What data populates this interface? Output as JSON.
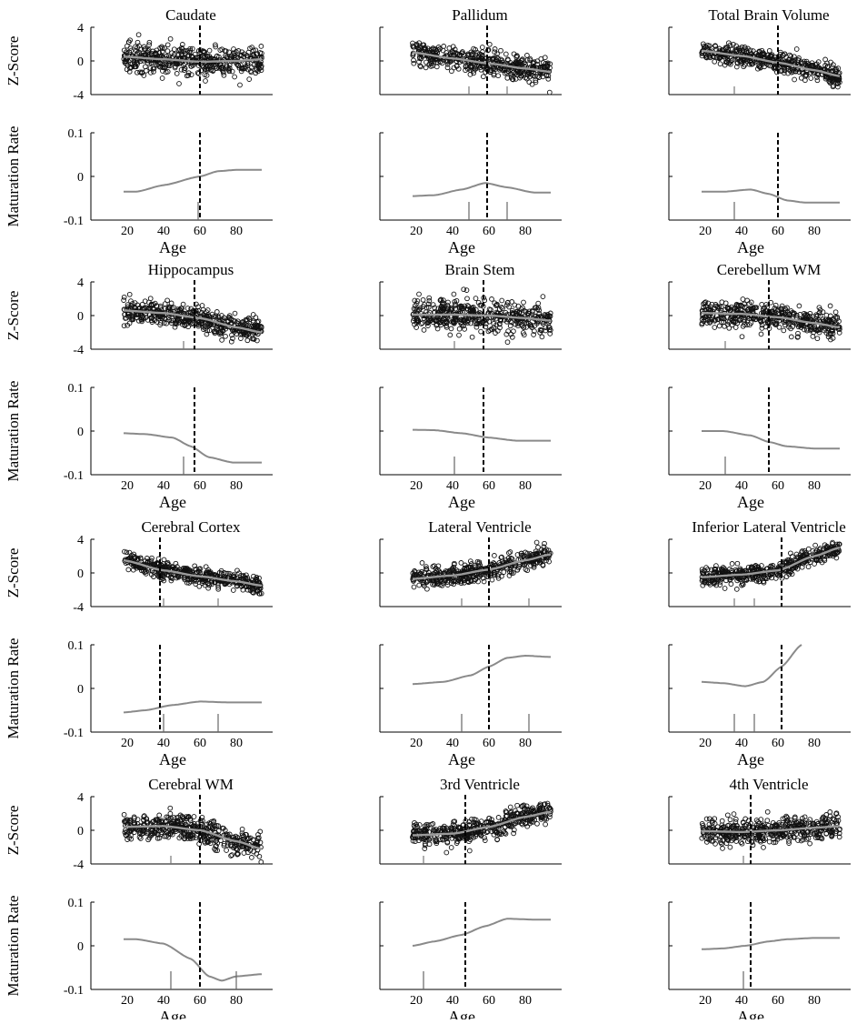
{
  "figure": {
    "ylabel_z": "Z-Score",
    "ylabel_rate": "Maturation Rate",
    "xlabel": "Age",
    "z_ticks": [
      "4",
      "0",
      "-4"
    ],
    "rate_ticks": [
      "0.1",
      "0",
      "-0.1"
    ],
    "age_ticks": [
      "20",
      "40",
      "60",
      "80"
    ]
  },
  "chart_data": [
    {
      "type": "scatter",
      "title": "Caudate",
      "xlabel": "Age",
      "ylabel": "Z-Score",
      "xlim": [
        0,
        100
      ],
      "ylim": [
        -4,
        4
      ],
      "age_range": [
        18,
        94
      ],
      "zscore_curve": {
        "x": [
          18,
          40,
          60,
          80,
          94
        ],
        "y": [
          0.5,
          0.2,
          -0.1,
          0,
          0.2
        ]
      },
      "z_spread": 1.1,
      "zscore_dashed_age": 60,
      "zscore_tick_ages": [],
      "rate_curve": {
        "x": [
          18,
          25,
          40,
          60,
          70,
          80,
          94
        ],
        "y": [
          -0.035,
          -0.035,
          -0.02,
          0,
          0.012,
          0.015,
          0.015
        ]
      },
      "rate_ylim": [
        -0.1,
        0.1
      ],
      "rate_dashed_age": 60,
      "rate_tick_ages": [
        59
      ]
    },
    {
      "type": "scatter",
      "title": "Pallidum",
      "xlabel": "Age",
      "ylabel": "Z-Score",
      "xlim": [
        0,
        100
      ],
      "ylim": [
        -4,
        4
      ],
      "age_range": [
        18,
        94
      ],
      "zscore_curve": {
        "x": [
          18,
          40,
          60,
          80,
          94
        ],
        "y": [
          1,
          0.3,
          -0.3,
          -0.9,
          -1.3
        ]
      },
      "z_spread": 1.0,
      "zscore_dashed_age": 59,
      "zscore_tick_ages": [
        49,
        70
      ],
      "rate_curve": {
        "x": [
          18,
          30,
          45,
          58,
          70,
          85,
          94
        ],
        "y": [
          -0.045,
          -0.043,
          -0.03,
          -0.015,
          -0.025,
          -0.037,
          -0.037
        ]
      },
      "rate_ylim": [
        -0.1,
        0.1
      ],
      "rate_dashed_age": 59,
      "rate_tick_ages": [
        49,
        70
      ]
    },
    {
      "type": "scatter",
      "title": "Total Brain Volume",
      "xlabel": "Age",
      "ylabel": "Z-Score",
      "xlim": [
        0,
        100
      ],
      "ylim": [
        -4,
        4
      ],
      "age_range": [
        18,
        94
      ],
      "zscore_curve": {
        "x": [
          18,
          40,
          60,
          80,
          94
        ],
        "y": [
          1.2,
          0.6,
          -0.2,
          -1.1,
          -1.8
        ]
      },
      "z_spread": 0.8,
      "zscore_dashed_age": 60,
      "zscore_tick_ages": [
        36
      ],
      "rate_curve": {
        "x": [
          18,
          30,
          45,
          55,
          65,
          75,
          94
        ],
        "y": [
          -0.035,
          -0.035,
          -0.03,
          -0.04,
          -0.055,
          -0.06,
          -0.06
        ]
      },
      "rate_ylim": [
        -0.1,
        0.1
      ],
      "rate_dashed_age": 60,
      "rate_tick_ages": [
        36
      ]
    },
    {
      "type": "scatter",
      "title": "Hippocampus",
      "xlabel": "Age",
      "ylabel": "Z-Score",
      "xlim": [
        0,
        100
      ],
      "ylim": [
        -4,
        4
      ],
      "age_range": [
        18,
        94
      ],
      "zscore_curve": {
        "x": [
          18,
          40,
          60,
          80,
          94
        ],
        "y": [
          0.6,
          0.3,
          -0.3,
          -1.4,
          -2
        ]
      },
      "z_spread": 1.0,
      "zscore_dashed_age": 57,
      "zscore_tick_ages": [
        51
      ],
      "rate_curve": {
        "x": [
          18,
          30,
          45,
          55,
          65,
          78,
          94
        ],
        "y": [
          -0.005,
          -0.007,
          -0.015,
          -0.035,
          -0.06,
          -0.072,
          -0.072
        ]
      },
      "rate_ylim": [
        -0.1,
        0.1
      ],
      "rate_dashed_age": 57,
      "rate_tick_ages": [
        51
      ]
    },
    {
      "type": "scatter",
      "title": "Brain Stem",
      "xlabel": "Age",
      "ylabel": "Z-Score",
      "xlim": [
        0,
        100
      ],
      "ylim": [
        -4,
        4
      ],
      "age_range": [
        18,
        94
      ],
      "zscore_curve": {
        "x": [
          18,
          40,
          60,
          80,
          94
        ],
        "y": [
          0.1,
          0.1,
          0,
          -0.3,
          -0.6
        ]
      },
      "z_spread": 1.2,
      "zscore_dashed_age": 57,
      "zscore_tick_ages": [
        41
      ],
      "rate_curve": {
        "x": [
          18,
          30,
          45,
          60,
          75,
          94
        ],
        "y": [
          0.003,
          0.002,
          -0.005,
          -0.015,
          -0.022,
          -0.022
        ]
      },
      "rate_ylim": [
        -0.1,
        0.1
      ],
      "rate_dashed_age": 57,
      "rate_tick_ages": [
        41
      ]
    },
    {
      "type": "scatter",
      "title": "Cerebellum WM",
      "xlabel": "Age",
      "ylabel": "Z-Score",
      "xlim": [
        0,
        100
      ],
      "ylim": [
        -4,
        4
      ],
      "age_range": [
        18,
        94
      ],
      "zscore_curve": {
        "x": [
          18,
          40,
          60,
          80,
          94
        ],
        "y": [
          0.3,
          0.2,
          -0.2,
          -0.9,
          -1.4
        ]
      },
      "z_spread": 1.0,
      "zscore_dashed_age": 55,
      "zscore_tick_ages": [
        31
      ],
      "rate_curve": {
        "x": [
          18,
          30,
          45,
          55,
          65,
          80,
          94
        ],
        "y": [
          0,
          0,
          -0.01,
          -0.025,
          -0.035,
          -0.04,
          -0.04
        ]
      },
      "rate_ylim": [
        -0.1,
        0.1
      ],
      "rate_dashed_age": 55,
      "rate_tick_ages": [
        31
      ]
    },
    {
      "type": "scatter",
      "title": "Cerebral Cortex",
      "xlabel": "Age",
      "ylabel": "Z-Score",
      "xlim": [
        0,
        100
      ],
      "ylim": [
        -4,
        4
      ],
      "age_range": [
        18,
        94
      ],
      "zscore_curve": {
        "x": [
          18,
          40,
          60,
          80,
          94
        ],
        "y": [
          1.5,
          0.3,
          -0.4,
          -1,
          -1.5
        ]
      },
      "z_spread": 0.7,
      "zscore_dashed_age": 38,
      "zscore_tick_ages": [
        40,
        70
      ],
      "rate_curve": {
        "x": [
          18,
          30,
          45,
          60,
          75,
          94
        ],
        "y": [
          -0.055,
          -0.05,
          -0.038,
          -0.03,
          -0.032,
          -0.032
        ]
      },
      "rate_ylim": [
        -0.1,
        0.1
      ],
      "rate_dashed_age": 38,
      "rate_tick_ages": [
        40,
        70
      ]
    },
    {
      "type": "scatter",
      "title": "Lateral Ventricle",
      "xlabel": "Age",
      "ylabel": "Z-Score",
      "xlim": [
        0,
        100
      ],
      "ylim": [
        -4,
        4
      ],
      "age_range": [
        18,
        94
      ],
      "zscore_curve": {
        "x": [
          18,
          40,
          60,
          80,
          94
        ],
        "y": [
          -0.7,
          -0.3,
          0.4,
          1.5,
          2.2
        ]
      },
      "z_spread": 0.8,
      "zscore_dashed_age": 60,
      "zscore_tick_ages": [
        45,
        82
      ],
      "rate_curve": {
        "x": [
          18,
          35,
          50,
          60,
          70,
          80,
          94
        ],
        "y": [
          0.01,
          0.015,
          0.03,
          0.05,
          0.07,
          0.075,
          0.072
        ]
      },
      "rate_ylim": [
        -0.1,
        0.1
      ],
      "rate_dashed_age": 60,
      "rate_tick_ages": [
        45,
        82
      ]
    },
    {
      "type": "scatter",
      "title": "Inferior Lateral Ventricle",
      "xlabel": "Age",
      "ylabel": "Z-Score",
      "xlim": [
        0,
        100
      ],
      "ylim": [
        -4,
        4
      ],
      "age_range": [
        18,
        94
      ],
      "zscore_curve": {
        "x": [
          18,
          40,
          60,
          80,
          94
        ],
        "y": [
          -0.5,
          -0.2,
          0.3,
          2,
          3
        ]
      },
      "z_spread": 0.7,
      "zscore_dashed_age": 62,
      "zscore_tick_ages": [
        36,
        47
      ],
      "rate_curve": {
        "x": [
          18,
          30,
          42,
          52,
          62,
          73
        ],
        "y": [
          0.015,
          0.012,
          0.005,
          0.015,
          0.05,
          0.1
        ]
      },
      "rate_ylim": [
        -0.1,
        0.1
      ],
      "rate_dashed_age": 62,
      "rate_tick_ages": [
        36,
        47
      ]
    },
    {
      "type": "scatter",
      "title": "Cerebral WM",
      "xlabel": "Age",
      "ylabel": "Z-Score",
      "xlim": [
        0,
        100
      ],
      "ylim": [
        -4,
        4
      ],
      "age_range": [
        18,
        94
      ],
      "zscore_curve": {
        "x": [
          18,
          40,
          60,
          80,
          94
        ],
        "y": [
          0.4,
          0.5,
          0,
          -1.3,
          -2.2
        ]
      },
      "z_spread": 1.0,
      "zscore_dashed_age": 60,
      "zscore_tick_ages": [
        44
      ],
      "rate_curve": {
        "x": [
          18,
          25,
          40,
          55,
          65,
          72,
          80,
          94
        ],
        "y": [
          0.015,
          0.015,
          0.005,
          -0.03,
          -0.07,
          -0.08,
          -0.07,
          -0.065
        ]
      },
      "rate_ylim": [
        -0.1,
        0.1
      ],
      "rate_dashed_age": 60,
      "rate_tick_ages": [
        44,
        80
      ]
    },
    {
      "type": "scatter",
      "title": "3rd Ventricle",
      "xlabel": "Age",
      "ylabel": "Z-Score",
      "xlim": [
        0,
        100
      ],
      "ylim": [
        -4,
        4
      ],
      "age_range": [
        18,
        94
      ],
      "zscore_curve": {
        "x": [
          18,
          40,
          60,
          80,
          94
        ],
        "y": [
          -0.6,
          -0.4,
          0.4,
          1.6,
          2.2
        ]
      },
      "z_spread": 0.9,
      "zscore_dashed_age": 47,
      "zscore_tick_ages": [
        24
      ],
      "rate_curve": {
        "x": [
          18,
          30,
          45,
          58,
          70,
          85,
          94
        ],
        "y": [
          0,
          0.01,
          0.025,
          0.045,
          0.062,
          0.06,
          0.06
        ]
      },
      "rate_ylim": [
        -0.1,
        0.1
      ],
      "rate_dashed_age": 47,
      "rate_tick_ages": [
        24
      ]
    },
    {
      "type": "scatter",
      "title": "4th Ventricle",
      "xlabel": "Age",
      "ylabel": "Z-Score",
      "xlim": [
        0,
        100
      ],
      "ylim": [
        -4,
        4
      ],
      "age_range": [
        18,
        94
      ],
      "zscore_curve": {
        "x": [
          18,
          40,
          60,
          80,
          94
        ],
        "y": [
          -0.1,
          -0.2,
          0,
          0.3,
          0.5
        ]
      },
      "z_spread": 1.0,
      "zscore_dashed_age": 45,
      "zscore_tick_ages": [
        41
      ],
      "rate_curve": {
        "x": [
          18,
          30,
          42,
          55,
          65,
          80,
          94
        ],
        "y": [
          -0.008,
          -0.006,
          0,
          0.01,
          0.015,
          0.018,
          0.018
        ]
      },
      "rate_ylim": [
        -0.1,
        0.1
      ],
      "rate_dashed_age": 45,
      "rate_tick_ages": [
        41
      ]
    }
  ]
}
